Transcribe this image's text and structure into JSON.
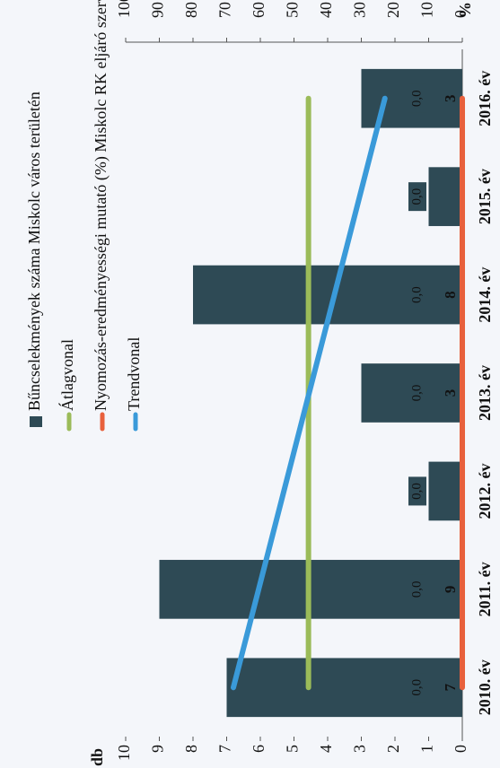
{
  "chart_data": {
    "type": "bar",
    "categories": [
      "2010. év",
      "2011. év",
      "2012. év",
      "2013. év",
      "2014. év",
      "2015. év",
      "2016. év"
    ],
    "y_label": "db",
    "y2_label": "%",
    "ylim": [
      0,
      10
    ],
    "yticks": [
      0,
      1,
      2,
      3,
      4,
      5,
      6,
      7,
      8,
      9,
      10
    ],
    "y2lim": [
      0,
      100
    ],
    "y2ticks": [
      0,
      10,
      20,
      30,
      40,
      50,
      60,
      70,
      80,
      90,
      100
    ],
    "series": [
      {
        "name": "Bűncselekmények száma Miskolc város területén",
        "type": "bar",
        "color": "#2e4a55",
        "values": [
          7,
          9,
          1,
          3,
          8,
          1,
          3
        ]
      },
      {
        "name": "Átlagvonal",
        "type": "line",
        "color": "#9bbb59",
        "values": [
          4.57,
          4.57,
          4.57,
          4.57,
          4.57,
          4.57,
          4.57
        ]
      },
      {
        "name": "Nyomozás-eredményességi mutató (%) Miskolc RK eljáró szerv",
        "type": "line",
        "axis": "y2",
        "color": "#e8603c",
        "values": [
          0,
          0,
          0,
          0,
          0,
          0,
          0
        ],
        "value_labels": [
          "0,0",
          "0,0",
          "0,0",
          "0,0",
          "0,0",
          "0,0",
          "0,0"
        ]
      },
      {
        "name": "Trendvonal",
        "type": "line",
        "color": "#3a9ad9",
        "values": [
          6.8,
          6.05,
          5.3,
          4.55,
          3.8,
          3.05,
          2.3
        ]
      }
    ]
  }
}
